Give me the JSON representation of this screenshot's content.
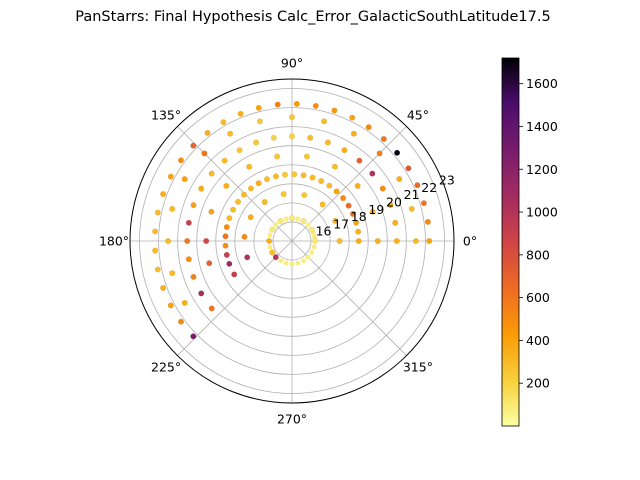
{
  "chart_data": {
    "type": "scatter",
    "projection": "polar",
    "title": "PanStarrs: Final Hypothesis Calc_Error_GalacticSouthLatitude17.5",
    "theta_ticks": [
      "0°",
      "45°",
      "90°",
      "135°",
      "180°",
      "225°",
      "270°",
      "315°"
    ],
    "r_ticks": [
      "16",
      "17",
      "18",
      "19",
      "20",
      "21",
      "22",
      "23"
    ],
    "r_tick_values": [
      16,
      17,
      18,
      19,
      20,
      21,
      22,
      23
    ],
    "rlim": [
      15,
      23.5
    ],
    "grid": true,
    "colormap": "inferno_r",
    "colorbar": {
      "range": [
        0,
        1720
      ],
      "ticks": [
        "200",
        "400",
        "600",
        "800",
        "1000",
        "1200",
        "1400",
        "1600"
      ],
      "tick_values": [
        200,
        400,
        600,
        800,
        1000,
        1200,
        1400,
        1600
      ]
    },
    "series": [
      {
        "x_theta_deg": [
          0,
          10,
          20,
          30,
          45,
          60,
          75,
          90,
          105,
          120,
          135,
          150,
          165,
          180,
          195,
          210,
          225,
          240,
          255,
          270,
          285,
          300,
          315,
          330,
          345
        ],
        "y_r": [
          16.2,
          16.2,
          16.2,
          16.2,
          16.2,
          16.2,
          16.2,
          16.2,
          16.2,
          16.2,
          16.2,
          16.2,
          16.2,
          16.2,
          16.2,
          16.2,
          16.2,
          16.2,
          16.2,
          16.2,
          16.2,
          16.2,
          16.2,
          16.2,
          16.2
        ],
        "values": [
          80,
          80,
          80,
          80,
          80,
          80,
          80,
          80,
          80,
          80,
          80,
          80,
          80,
          80,
          80,
          80,
          80,
          80,
          80,
          80,
          80,
          80,
          80,
          80,
          80
        ]
      }
    ],
    "points": [
      {
        "t": 0,
        "r": 18.5,
        "v": 350
      },
      {
        "t": 8,
        "r": 18.5,
        "v": 350
      },
      {
        "t": 16,
        "r": 18.5,
        "v": 400
      },
      {
        "t": 24,
        "r": 18.5,
        "v": 600
      },
      {
        "t": 32,
        "r": 18.5,
        "v": 650
      },
      {
        "t": 40,
        "r": 18.5,
        "v": 500
      },
      {
        "t": 48,
        "r": 18.5,
        "v": 400
      },
      {
        "t": 56,
        "r": 18.5,
        "v": 300
      },
      {
        "t": 64,
        "r": 18.5,
        "v": 300
      },
      {
        "t": 72,
        "r": 18.5,
        "v": 300
      },
      {
        "t": 80,
        "r": 18.5,
        "v": 300
      },
      {
        "t": 88,
        "r": 18.5,
        "v": 250
      },
      {
        "t": 96,
        "r": 18.5,
        "v": 250
      },
      {
        "t": 104,
        "r": 18.5,
        "v": 300
      },
      {
        "t": 112,
        "r": 18.5,
        "v": 300
      },
      {
        "t": 120,
        "r": 18.5,
        "v": 350
      },
      {
        "t": 128,
        "r": 18.5,
        "v": 300
      },
      {
        "t": 136,
        "r": 18.5,
        "v": 300
      },
      {
        "t": 144,
        "r": 18.5,
        "v": 300
      },
      {
        "t": 152,
        "r": 18.5,
        "v": 300
      },
      {
        "t": 160,
        "r": 18.5,
        "v": 300
      },
      {
        "t": 168,
        "r": 18.5,
        "v": 500
      },
      {
        "t": 176,
        "r": 18.5,
        "v": 600
      },
      {
        "t": 184,
        "r": 18.5,
        "v": 500
      },
      {
        "t": 192,
        "r": 18.5,
        "v": 900
      },
      {
        "t": 200,
        "r": 18.5,
        "v": 1100
      },
      {
        "t": 210,
        "r": 18.5,
        "v": 900
      },
      {
        "t": 0,
        "r": 20.5,
        "v": 350
      },
      {
        "t": 10,
        "r": 20.5,
        "v": 350
      },
      {
        "t": 20,
        "r": 20.5,
        "v": 350
      },
      {
        "t": 30,
        "r": 20.5,
        "v": 500
      },
      {
        "t": 40,
        "r": 20.5,
        "v": 1000
      },
      {
        "t": 50,
        "r": 20.5,
        "v": 700
      },
      {
        "t": 60,
        "r": 20.5,
        "v": 350
      },
      {
        "t": 70,
        "r": 20.5,
        "v": 300
      },
      {
        "t": 80,
        "r": 20.5,
        "v": 300
      },
      {
        "t": 90,
        "r": 20.5,
        "v": 200
      },
      {
        "t": 100,
        "r": 20.5,
        "v": 200
      },
      {
        "t": 110,
        "r": 20.5,
        "v": 250
      },
      {
        "t": 120,
        "r": 20.5,
        "v": 250
      },
      {
        "t": 130,
        "r": 20.5,
        "v": 300
      },
      {
        "t": 140,
        "r": 20.5,
        "v": 300
      },
      {
        "t": 150,
        "r": 20.5,
        "v": 350
      },
      {
        "t": 160,
        "r": 20.5,
        "v": 400
      },
      {
        "t": 170,
        "r": 20.5,
        "v": 900
      },
      {
        "t": 180,
        "r": 20.5,
        "v": 600
      },
      {
        "t": 190,
        "r": 20.5,
        "v": 500
      },
      {
        "t": 200,
        "r": 20.5,
        "v": 550
      },
      {
        "t": 210,
        "r": 20.5,
        "v": 1050
      },
      {
        "t": 220,
        "r": 20.5,
        "v": 600
      },
      {
        "t": 0,
        "r": 22.2,
        "v": 400
      },
      {
        "t": 8,
        "r": 22.2,
        "v": 500
      },
      {
        "t": 16,
        "r": 22.2,
        "v": 600
      },
      {
        "t": 24,
        "r": 22.2,
        "v": 650
      },
      {
        "t": 32,
        "r": 22.2,
        "v": 750
      },
      {
        "t": 40,
        "r": 22.2,
        "v": 1700
      },
      {
        "t": 48,
        "r": 22.2,
        "v": 600
      },
      {
        "t": 56,
        "r": 22.2,
        "v": 500
      },
      {
        "t": 64,
        "r": 22.2,
        "v": 400
      },
      {
        "t": 72,
        "r": 22.2,
        "v": 450
      },
      {
        "t": 80,
        "r": 22.2,
        "v": 500
      },
      {
        "t": 88,
        "r": 22.2,
        "v": 450
      },
      {
        "t": 96,
        "r": 22.2,
        "v": 550
      },
      {
        "t": 104,
        "r": 22.2,
        "v": 400
      },
      {
        "t": 112,
        "r": 22.2,
        "v": 350
      },
      {
        "t": 120,
        "r": 22.2,
        "v": 300
      },
      {
        "t": 128,
        "r": 22.2,
        "v": 350
      },
      {
        "t": 136,
        "r": 22.2,
        "v": 700
      },
      {
        "t": 144,
        "r": 22.2,
        "v": 500
      },
      {
        "t": 152,
        "r": 22.2,
        "v": 400
      },
      {
        "t": 160,
        "r": 22.2,
        "v": 350
      },
      {
        "t": 168,
        "r": 22.2,
        "v": 300
      },
      {
        "t": 176,
        "r": 22.2,
        "v": 300
      },
      {
        "t": 184,
        "r": 22.2,
        "v": 300
      },
      {
        "t": 192,
        "r": 22.2,
        "v": 300
      },
      {
        "t": 200,
        "r": 22.2,
        "v": 350
      },
      {
        "t": 208,
        "r": 22.2,
        "v": 400
      },
      {
        "t": 216,
        "r": 22.2,
        "v": 500
      },
      {
        "t": 224,
        "r": 22.2,
        "v": 1300
      },
      {
        "t": 0,
        "r": 19.5,
        "v": 350
      },
      {
        "t": 20,
        "r": 19.5,
        "v": 300
      },
      {
        "t": 40,
        "r": 19.5,
        "v": 350
      },
      {
        "t": 60,
        "r": 19.5,
        "v": 300
      },
      {
        "t": 80,
        "r": 19.5,
        "v": 250
      },
      {
        "t": 100,
        "r": 19.5,
        "v": 250
      },
      {
        "t": 120,
        "r": 19.5,
        "v": 300
      },
      {
        "t": 140,
        "r": 19.5,
        "v": 350
      },
      {
        "t": 160,
        "r": 19.5,
        "v": 400
      },
      {
        "t": 180,
        "r": 19.5,
        "v": 850
      },
      {
        "t": 195,
        "r": 19.5,
        "v": 700
      },
      {
        "t": 0,
        "r": 21.5,
        "v": 300
      },
      {
        "t": 15,
        "r": 21.5,
        "v": 300
      },
      {
        "t": 30,
        "r": 21.5,
        "v": 350
      },
      {
        "t": 45,
        "r": 21.5,
        "v": 550
      },
      {
        "t": 60,
        "r": 21.5,
        "v": 350
      },
      {
        "t": 75,
        "r": 21.5,
        "v": 300
      },
      {
        "t": 90,
        "r": 21.5,
        "v": 250
      },
      {
        "t": 105,
        "r": 21.5,
        "v": 250
      },
      {
        "t": 120,
        "r": 21.5,
        "v": 300
      },
      {
        "t": 135,
        "r": 21.5,
        "v": 600
      },
      {
        "t": 150,
        "r": 21.5,
        "v": 400
      },
      {
        "t": 165,
        "r": 21.5,
        "v": 300
      },
      {
        "t": 180,
        "r": 21.5,
        "v": 300
      },
      {
        "t": 195,
        "r": 21.5,
        "v": 300
      },
      {
        "t": 210,
        "r": 21.5,
        "v": 350
      },
      {
        "t": 0,
        "r": 17.5,
        "v": 300
      },
      {
        "t": 25,
        "r": 17.5,
        "v": 300
      },
      {
        "t": 50,
        "r": 17.5,
        "v": 300
      },
      {
        "t": 75,
        "r": 17.5,
        "v": 250
      },
      {
        "t": 100,
        "r": 17.5,
        "v": 250
      },
      {
        "t": 125,
        "r": 17.5,
        "v": 300
      },
      {
        "t": 150,
        "r": 17.5,
        "v": 350
      },
      {
        "t": 175,
        "r": 17.5,
        "v": 500
      },
      {
        "t": 200,
        "r": 17.5,
        "v": 1000
      },
      {
        "t": 0,
        "r": 16.2,
        "v": 100
      },
      {
        "t": 30,
        "r": 16.2,
        "v": 100
      },
      {
        "t": 60,
        "r": 16.2,
        "v": 100
      },
      {
        "t": 90,
        "r": 16.2,
        "v": 100
      },
      {
        "t": 120,
        "r": 16.2,
        "v": 100
      },
      {
        "t": 150,
        "r": 16.2,
        "v": 100
      },
      {
        "t": 180,
        "r": 16.2,
        "v": 350
      },
      {
        "t": 210,
        "r": 16.2,
        "v": 300
      },
      {
        "t": 225,
        "r": 16.2,
        "v": 1000
      }
    ]
  }
}
